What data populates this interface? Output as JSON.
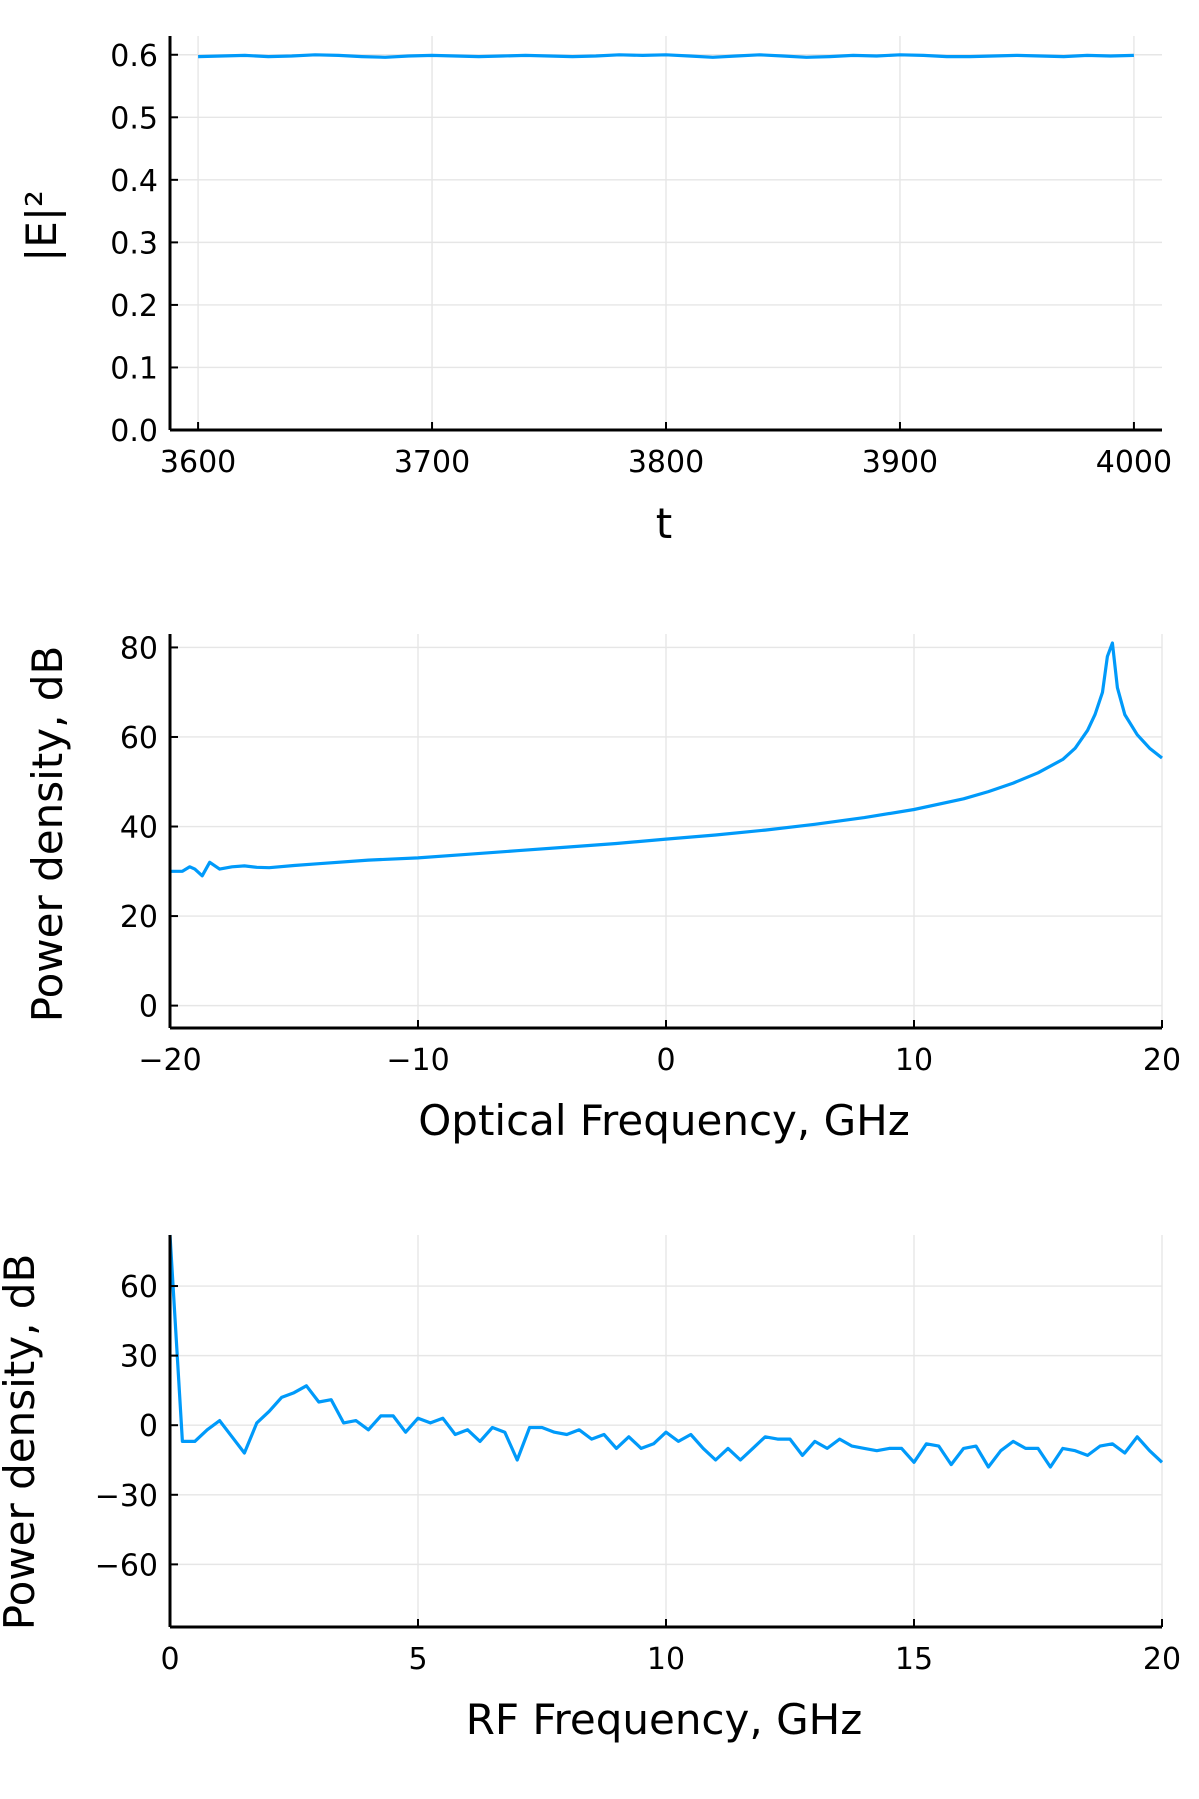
{
  "chart_data": [
    {
      "type": "line",
      "xlabel": "t",
      "ylabel": "|E|²",
      "xlim": [
        3588,
        4012
      ],
      "ylim": [
        0.0,
        0.63
      ],
      "xticks": [
        3600,
        3700,
        3800,
        3900,
        4000
      ],
      "xtick_labels": [
        "3600",
        "3700",
        "3800",
        "3900",
        "4000"
      ],
      "yticks": [
        0.0,
        0.1,
        0.2,
        0.3,
        0.4,
        0.5,
        0.6
      ],
      "ytick_labels": [
        "0.0",
        "0.1",
        "0.2",
        "0.3",
        "0.4",
        "0.5",
        "0.6"
      ],
      "grid": true,
      "line_color": "#009AFA",
      "series": [
        {
          "x": [
            3600,
            3610,
            3620,
            3630,
            3640,
            3650,
            3660,
            3670,
            3680,
            3690,
            3700,
            3710,
            3720,
            3730,
            3740,
            3750,
            3760,
            3770,
            3780,
            3790,
            3800,
            3810,
            3820,
            3830,
            3840,
            3850,
            3860,
            3870,
            3880,
            3890,
            3900,
            3910,
            3920,
            3930,
            3940,
            3950,
            3960,
            3970,
            3980,
            3990,
            4000
          ],
          "y": [
            0.597,
            0.598,
            0.599,
            0.597,
            0.598,
            0.6,
            0.599,
            0.597,
            0.596,
            0.598,
            0.599,
            0.598,
            0.597,
            0.598,
            0.599,
            0.598,
            0.597,
            0.598,
            0.6,
            0.599,
            0.6,
            0.598,
            0.596,
            0.598,
            0.6,
            0.598,
            0.596,
            0.597,
            0.599,
            0.598,
            0.6,
            0.599,
            0.597,
            0.597,
            0.598,
            0.599,
            0.598,
            0.597,
            0.599,
            0.598,
            0.599
          ]
        }
      ]
    },
    {
      "type": "line",
      "xlabel": "Optical Frequency, GHz",
      "ylabel": "Power density, dB",
      "xlim": [
        -20,
        20
      ],
      "ylim": [
        -5,
        83
      ],
      "xticks": [
        -20,
        -10,
        0,
        10,
        20
      ],
      "xtick_labels": [
        "−20",
        "−10",
        "0",
        "10",
        "20"
      ],
      "yticks": [
        0,
        20,
        40,
        60,
        80
      ],
      "ytick_labels": [
        "0",
        "20",
        "40",
        "60",
        "80"
      ],
      "grid": true,
      "line_color": "#009AFA",
      "series": [
        {
          "x": [
            -20,
            -19.5,
            -19.2,
            -19.0,
            -18.7,
            -18.4,
            -18.0,
            -17.5,
            -17.0,
            -16.5,
            -16.0,
            -15.0,
            -14.0,
            -12.0,
            -10.0,
            -8.0,
            -6.0,
            -4.0,
            -2.0,
            0.0,
            2.0,
            4.0,
            6.0,
            8.0,
            10.0,
            12.0,
            13.0,
            14.0,
            15.0,
            16.0,
            16.5,
            17.0,
            17.3,
            17.6,
            17.8,
            18.0,
            18.2,
            18.5,
            19.0,
            19.5,
            20.0
          ],
          "y": [
            30.0,
            30.0,
            31.0,
            30.5,
            29.0,
            32.0,
            30.5,
            31.0,
            31.2,
            30.9,
            30.8,
            31.3,
            31.7,
            32.5,
            33.0,
            33.8,
            34.6,
            35.4,
            36.2,
            37.2,
            38.1,
            39.2,
            40.5,
            42.0,
            43.8,
            46.2,
            47.8,
            49.7,
            52.0,
            55.0,
            57.5,
            61.5,
            65.0,
            70.0,
            78.0,
            81.0,
            71.0,
            65.0,
            60.5,
            57.5,
            55.3
          ]
        }
      ]
    },
    {
      "type": "line",
      "xlabel": "RF Frequency, GHz",
      "ylabel": "Power density, dB",
      "xlim": [
        0,
        20
      ],
      "ylim": [
        -87,
        82
      ],
      "xticks": [
        0,
        5,
        10,
        15,
        20
      ],
      "xtick_labels": [
        "0",
        "5",
        "10",
        "15",
        "20"
      ],
      "yticks": [
        -60,
        -30,
        0,
        30,
        60
      ],
      "ytick_labels": [
        "−60",
        "−30",
        "0",
        "30",
        "60"
      ],
      "grid": true,
      "line_color": "#009AFA",
      "series": [
        {
          "x": [
            0.0,
            0.25,
            0.5,
            0.75,
            1.0,
            1.25,
            1.5,
            1.75,
            2.0,
            2.25,
            2.5,
            2.75,
            3.0,
            3.25,
            3.5,
            3.75,
            4.0,
            4.25,
            4.5,
            4.75,
            5.0,
            5.25,
            5.5,
            5.75,
            6.0,
            6.25,
            6.5,
            6.75,
            7.0,
            7.25,
            7.5,
            7.75,
            8.0,
            8.25,
            8.5,
            8.75,
            9.0,
            9.25,
            9.5,
            9.75,
            10.0,
            10.25,
            10.5,
            10.75,
            11.0,
            11.25,
            11.5,
            11.75,
            12.0,
            12.25,
            12.5,
            12.75,
            13.0,
            13.25,
            13.5,
            13.75,
            14.0,
            14.25,
            14.5,
            14.75,
            15.0,
            15.25,
            15.5,
            15.75,
            16.0,
            16.25,
            16.5,
            16.75,
            17.0,
            17.25,
            17.5,
            17.75,
            18.0,
            18.25,
            18.5,
            18.75,
            19.0,
            19.25,
            19.5,
            19.75,
            20.0
          ],
          "y": [
            82,
            -7,
            -7,
            -2,
            2,
            -5,
            -12,
            1,
            6,
            12,
            14,
            17,
            10,
            11,
            1,
            2,
            -2,
            4,
            4,
            -3,
            3,
            1,
            3,
            -4,
            -2,
            -7,
            -1,
            -3,
            -15,
            -1,
            -1,
            -3,
            -4,
            -2,
            -6,
            -4,
            -10,
            -5,
            -10,
            -8,
            -3,
            -7,
            -4,
            -10,
            -15,
            -10,
            -15,
            -10,
            -5,
            -6,
            -6,
            -13,
            -7,
            -10,
            -6,
            -9,
            -10,
            -11,
            -10,
            -10,
            -16,
            -8,
            -9,
            -17,
            -10,
            -9,
            -18,
            -11,
            -7,
            -10,
            -10,
            -18,
            -10,
            -11,
            -13,
            -9,
            -8,
            -12,
            -5,
            -11,
            -16
          ]
        }
      ]
    }
  ]
}
